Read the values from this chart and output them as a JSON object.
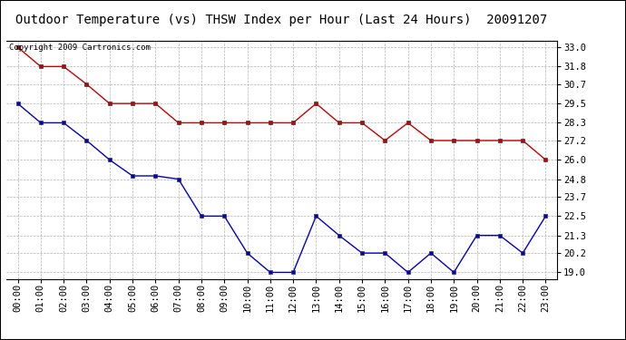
{
  "title": "Outdoor Temperature (vs) THSW Index per Hour (Last 24 Hours)  20091207",
  "copyright": "Copyright 2009 Cartronics.com",
  "hours": [
    "00:00",
    "01:00",
    "02:00",
    "03:00",
    "04:00",
    "05:00",
    "06:00",
    "07:00",
    "08:00",
    "09:00",
    "10:00",
    "11:00",
    "12:00",
    "13:00",
    "14:00",
    "15:00",
    "16:00",
    "17:00",
    "18:00",
    "19:00",
    "20:00",
    "21:00",
    "22:00",
    "23:00"
  ],
  "thsw": [
    33.0,
    31.8,
    31.8,
    30.7,
    29.5,
    29.5,
    29.5,
    28.3,
    28.3,
    28.3,
    28.3,
    28.3,
    28.3,
    29.5,
    28.3,
    28.3,
    27.2,
    28.3,
    27.2,
    27.2,
    27.2,
    27.2,
    27.2,
    26.0
  ],
  "temp": [
    29.5,
    28.3,
    28.3,
    27.2,
    26.0,
    25.0,
    25.0,
    24.8,
    22.5,
    22.5,
    20.2,
    19.0,
    19.0,
    22.5,
    21.3,
    20.2,
    20.2,
    19.0,
    20.2,
    19.0,
    21.3,
    21.3,
    20.2,
    22.5
  ],
  "thsw_color": "#cc0000",
  "temp_color": "#0000cc",
  "background_color": "#ffffff",
  "plot_bg_color": "#ffffff",
  "grid_color": "#b0b0b0",
  "yticks": [
    19.0,
    20.2,
    21.3,
    22.5,
    23.7,
    24.8,
    26.0,
    27.2,
    28.3,
    29.5,
    30.7,
    31.8,
    33.0
  ],
  "ymin": 18.6,
  "ymax": 33.4,
  "title_fontsize": 10,
  "tick_fontsize": 7.5,
  "copyright_fontsize": 6.5
}
